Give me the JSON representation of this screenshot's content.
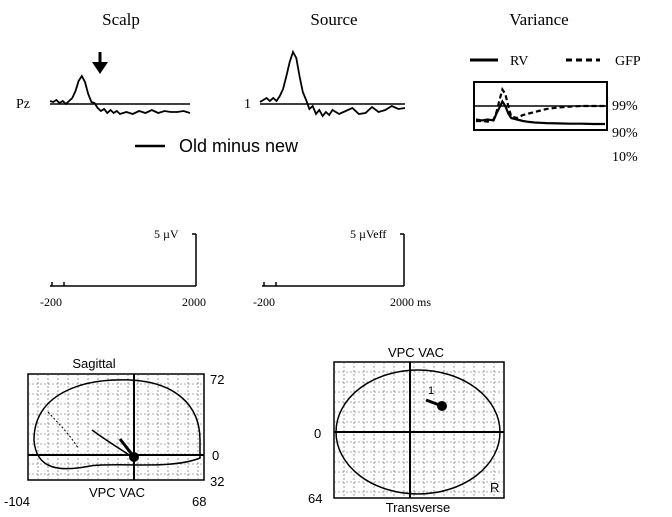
{
  "panels": {
    "scalp": {
      "title": "Scalp",
      "channel": "Pz"
    },
    "source": {
      "title": "Source",
      "channel": "1"
    },
    "variance": {
      "title": "Variance",
      "legend": {
        "rv": "RV",
        "gfp": "GFP"
      },
      "pct": [
        "99%",
        "90%",
        "10%"
      ]
    }
  },
  "condition": "Old minus new",
  "scales": {
    "scalp": {
      "amp": "5 µV",
      "tmin": "-200",
      "tmax": "2000"
    },
    "source": {
      "amp": "5 µVeff",
      "tmin": "-200",
      "tmax": "2000 ms"
    }
  },
  "brain": {
    "sagittal": {
      "title": "Sagittal",
      "label": "VPC VAC",
      "top": "72",
      "mid": "0",
      "bottom": "32",
      "left": "-104",
      "right": "68"
    },
    "transverse": {
      "title": "Transverse",
      "label": "VPC VAC",
      "mid": "0",
      "bottom": "64",
      "marker": "R",
      "dipole": "1"
    }
  },
  "chart_data": [
    {
      "type": "line",
      "title": "Scalp",
      "channel": "Pz",
      "x_range_ms": [
        -200,
        2000
      ],
      "series": [
        {
          "name": "Old minus new",
          "x": [
            -200,
            -150,
            -100,
            -50,
            0,
            50,
            100,
            150,
            200,
            250,
            300,
            350,
            400,
            450,
            500,
            550,
            600,
            650,
            700,
            750,
            800,
            850,
            900,
            1000,
            1100,
            1200,
            1300,
            1400,
            1500,
            1600,
            1700,
            1800,
            1900,
            2000
          ],
          "values": [
            0.3,
            0.2,
            0.4,
            0.1,
            0.3,
            0.0,
            0.3,
            0.6,
            1.3,
            2.3,
            2.8,
            2.2,
            1.0,
            0.2,
            0.1,
            -0.4,
            -0.7,
            -0.5,
            -0.9,
            -0.6,
            -0.9,
            -0.7,
            -1.0,
            -0.8,
            -1.0,
            -0.7,
            -0.9,
            -0.6,
            -0.9,
            -0.7,
            -0.8,
            -0.8,
            -0.7,
            -0.9
          ]
        }
      ]
    },
    {
      "type": "line",
      "title": "Source",
      "channel": "1",
      "x_range_ms": [
        -200,
        2000
      ],
      "series": [
        {
          "name": "Old minus new",
          "x": [
            -200,
            -150,
            -100,
            -50,
            0,
            50,
            100,
            150,
            200,
            250,
            300,
            350,
            400,
            450,
            500,
            550,
            600,
            650,
            700,
            750,
            800,
            850,
            900,
            1000,
            1100,
            1200,
            1300,
            1400,
            1500,
            1600,
            1700,
            1800,
            1900,
            2000
          ],
          "values": [
            0.2,
            0.4,
            0.6,
            0.3,
            0.6,
            0.3,
            0.8,
            1.5,
            2.8,
            4.2,
            5.2,
            4.6,
            2.8,
            1.2,
            0.4,
            -0.5,
            -0.2,
            -1.0,
            -0.6,
            -1.2,
            -0.8,
            -1.1,
            -0.6,
            -1.0,
            -0.7,
            -0.4,
            -1.0,
            -0.9,
            -0.3,
            -0.8,
            -0.6,
            -0.2,
            -0.5,
            -0.4
          ]
        }
      ]
    },
    {
      "type": "line",
      "title": "Variance",
      "x_range_ms": [
        -200,
        2000
      ],
      "y_labels": [
        "99%",
        "90%",
        "10%"
      ],
      "series": [
        {
          "name": "RV",
          "x": [
            -200,
            -100,
            0,
            100,
            150,
            200,
            250,
            300,
            350,
            400,
            500,
            600,
            700,
            800,
            900,
            1000,
            1200,
            1400,
            1600,
            1800,
            2000
          ],
          "values": [
            0.35,
            0.32,
            0.35,
            0.32,
            0.55,
            0.75,
            0.95,
            0.8,
            0.55,
            0.4,
            0.35,
            0.3,
            0.27,
            0.25,
            0.24,
            0.23,
            0.22,
            0.21,
            0.21,
            0.2,
            0.2
          ]
        },
        {
          "name": "GFP",
          "x": [
            -200,
            -100,
            0,
            100,
            150,
            200,
            250,
            300,
            350,
            400,
            500,
            600,
            700,
            800,
            900,
            1000,
            1200,
            1400,
            1600,
            1800,
            2000
          ],
          "values": [
            0.3,
            0.3,
            0.28,
            0.35,
            0.6,
            1.0,
            1.35,
            1.2,
            0.8,
            0.45,
            0.4,
            0.5,
            0.55,
            0.6,
            0.65,
            0.7,
            0.75,
            0.78,
            0.8,
            0.8,
            0.8
          ]
        }
      ]
    }
  ]
}
